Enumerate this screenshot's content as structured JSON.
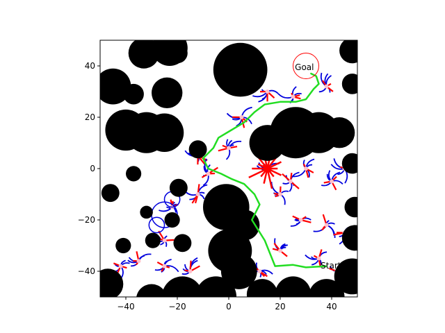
{
  "chart_data": {
    "type": "scatter",
    "title": "",
    "xlabel": "",
    "ylabel": "",
    "xlim": [
      -50,
      50
    ],
    "ylim": [
      -50,
      50
    ],
    "grid": false,
    "legend": "none",
    "xticks": [
      "−40",
      "−20",
      "0",
      "20",
      "40"
    ],
    "xtick_values": [
      -40,
      -20,
      0,
      20,
      40
    ],
    "yticks": [
      "−40",
      "−20",
      "0",
      "20",
      "40"
    ],
    "ytick_values": [
      -40,
      -20,
      0,
      20,
      40
    ],
    "annotations": [
      {
        "text": "Goal",
        "x": 29.5,
        "y": 39.5
      },
      {
        "text": "Start",
        "x": 39.5,
        "y": -37.5
      }
    ],
    "goal_circle": {
      "x": 30,
      "y": 40,
      "r": 5
    },
    "obstacles": [
      {
        "x": 4.5,
        "y": 38.5,
        "r": 10.5
      },
      {
        "x": -23,
        "y": 47,
        "r": 7
      },
      {
        "x": -33,
        "y": 45,
        "r": 6
      },
      {
        "x": -20,
        "y": 45,
        "r": 4
      },
      {
        "x": -45,
        "y": 32,
        "r": 7
      },
      {
        "x": -24,
        "y": 29.5,
        "r": 6
      },
      {
        "x": -40,
        "y": 15,
        "r": 8
      },
      {
        "x": -32,
        "y": 14,
        "r": 8
      },
      {
        "x": -25,
        "y": 14,
        "r": 7.5
      },
      {
        "x": -37,
        "y": 29,
        "r": 4
      },
      {
        "x": -12,
        "y": 7.5,
        "r": 3.5
      },
      {
        "x": -37,
        "y": -2,
        "r": 3
      },
      {
        "x": -46,
        "y": -9.5,
        "r": 3.5
      },
      {
        "x": -19.5,
        "y": -7.5,
        "r": 3.5
      },
      {
        "x": -32,
        "y": -17,
        "r": 2.5
      },
      {
        "x": -22,
        "y": -20,
        "r": 3
      },
      {
        "x": -41,
        "y": -30,
        "r": 3
      },
      {
        "x": -29.5,
        "y": -28,
        "r": 3
      },
      {
        "x": -18,
        "y": -29,
        "r": 3.5
      },
      {
        "x": -5,
        "y": -50,
        "r": 8
      },
      {
        "x": -18,
        "y": -50,
        "r": 8
      },
      {
        "x": -30,
        "y": -51,
        "r": 6
      },
      {
        "x": -47,
        "y": -45,
        "r": 6
      },
      {
        "x": -1,
        "y": -15,
        "r": 9
      },
      {
        "x": 0.5,
        "y": -32,
        "r": 8.5
      },
      {
        "x": 6,
        "y": -22,
        "r": 6
      },
      {
        "x": 4,
        "y": -40,
        "r": 7
      },
      {
        "x": 15,
        "y": 10,
        "r": 7
      },
      {
        "x": 26,
        "y": 14,
        "r": 10
      },
      {
        "x": 35,
        "y": 14,
        "r": 8
      },
      {
        "x": 43,
        "y": 14,
        "r": 6
      },
      {
        "x": 48,
        "y": 2,
        "r": 4
      },
      {
        "x": 48,
        "y": 33,
        "r": 4
      },
      {
        "x": 48,
        "y": 46,
        "r": 5
      },
      {
        "x": 49,
        "y": -15,
        "r": 4
      },
      {
        "x": 49,
        "y": -27,
        "r": 5
      },
      {
        "x": 48,
        "y": -42,
        "r": 7
      },
      {
        "x": 25,
        "y": -49,
        "r": 7
      },
      {
        "x": 38,
        "y": -50,
        "r": 7
      },
      {
        "x": 13,
        "y": -49,
        "r": 6
      }
    ],
    "series": [
      {
        "kind": "path",
        "color": "#22dd22",
        "values": [
          [
            38,
            -38
          ],
          [
            30,
            -38.5
          ],
          [
            25,
            -37.5
          ],
          [
            18,
            -38
          ],
          [
            16,
            -33
          ],
          [
            14,
            -28
          ],
          [
            9,
            -20
          ],
          [
            12,
            -14
          ],
          [
            10,
            -10
          ],
          [
            6,
            -6
          ],
          [
            1,
            -4
          ],
          [
            -3,
            -2
          ],
          [
            -8,
            0
          ],
          [
            -10,
            4
          ],
          [
            -6,
            8
          ],
          [
            -4,
            12
          ],
          [
            1,
            15
          ],
          [
            6,
            18
          ],
          [
            10,
            22
          ],
          [
            14,
            25
          ],
          [
            20,
            26
          ],
          [
            26,
            26
          ],
          [
            30,
            27
          ],
          [
            33,
            31
          ],
          [
            35,
            33
          ],
          [
            34,
            36
          ],
          [
            32,
            37
          ]
        ]
      }
    ]
  }
}
